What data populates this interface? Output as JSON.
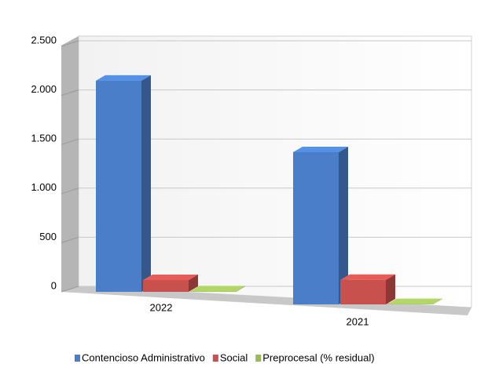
{
  "chart_data": {
    "type": "bar3d",
    "categories": [
      "2022",
      "2021"
    ],
    "series": [
      {
        "name": "Contencioso Administrativo",
        "color": "#4a7ec8",
        "values": [
          2150,
          1550
        ]
      },
      {
        "name": "Social",
        "color": "#c8504d",
        "values": [
          120,
          250
        ]
      },
      {
        "name": "Preprocesal (% residual)",
        "color": "#9bbb59",
        "values": [
          5,
          3
        ]
      }
    ],
    "ylim": [
      0,
      2500
    ],
    "yticks": [
      0,
      {
        "value": 500,
        "label": "500"
      },
      {
        "value": 1000,
        "label": "1.000"
      },
      {
        "value": 1500,
        "label": "1.500"
      },
      {
        "value": 2000,
        "label": "2.000"
      },
      {
        "value": 2500,
        "label": "2.500"
      }
    ],
    "grid": true,
    "legend": "bottom"
  }
}
